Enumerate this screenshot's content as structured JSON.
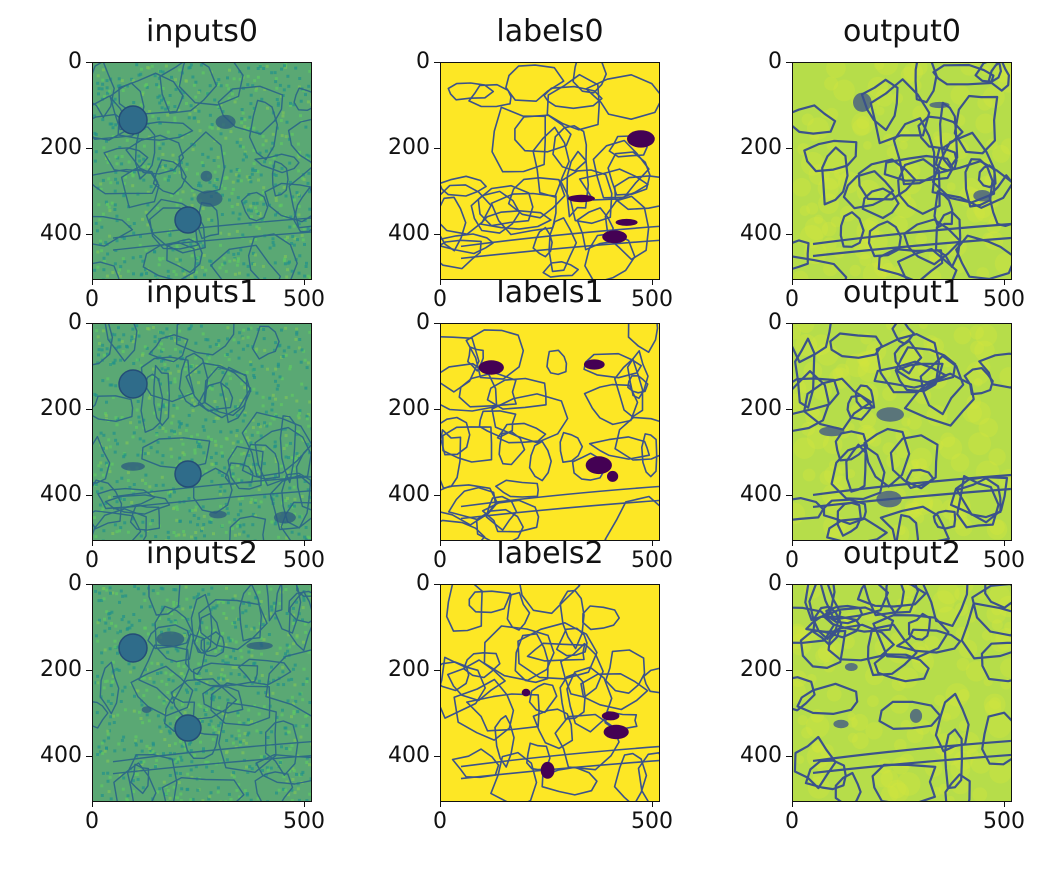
{
  "figure": {
    "panels": [
      {
        "title": "inputs0",
        "kind": "inputs"
      },
      {
        "title": "labels0",
        "kind": "labels"
      },
      {
        "title": "output0",
        "kind": "output"
      },
      {
        "title": "inputs1",
        "kind": "inputs"
      },
      {
        "title": "labels1",
        "kind": "labels"
      },
      {
        "title": "output1",
        "kind": "output"
      },
      {
        "title": "inputs2",
        "kind": "inputs"
      },
      {
        "title": "labels2",
        "kind": "labels"
      },
      {
        "title": "output2",
        "kind": "output"
      }
    ],
    "y_ticks": [
      "0",
      "200",
      "400"
    ],
    "x_ticks": [
      "0",
      "500"
    ],
    "colormap": {
      "low": "#440154",
      "mid_dark": "#3b528b",
      "mid": "#21918c",
      "mid_light": "#5ec962",
      "high": "#fde725"
    }
  }
}
